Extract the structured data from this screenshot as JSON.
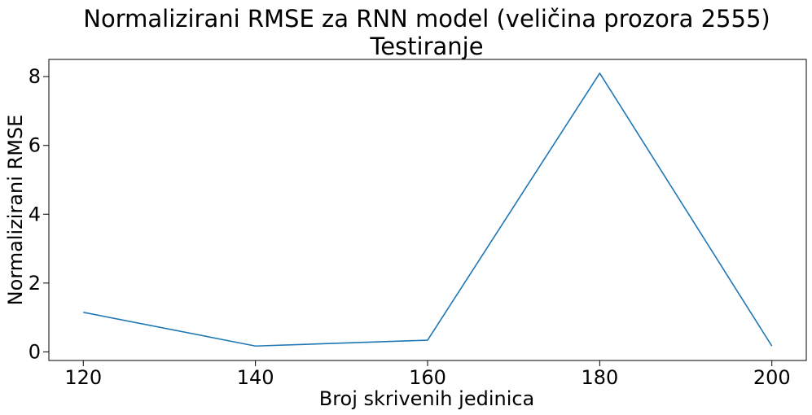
{
  "chart_data": {
    "type": "line",
    "title": "Normalizirani RMSE za RNN model (veličina prozora 2555)",
    "subtitle": "Testiranje",
    "xlabel": "Broj skrivenih jedinica",
    "ylabel": "Normalizirani RMSE",
    "x": [
      120,
      140,
      160,
      180,
      200
    ],
    "series": [
      {
        "values": [
          1.15,
          0.17,
          0.34,
          8.1,
          0.17
        ],
        "color": "#1f77b4"
      }
    ],
    "xticks": [
      "120",
      "140",
      "160",
      "180",
      "200"
    ],
    "yticks": [
      "0",
      "2",
      "4",
      "6",
      "8"
    ],
    "xlim": [
      116,
      204
    ],
    "ylim": [
      -0.25,
      8.5
    ],
    "grid": false
  }
}
